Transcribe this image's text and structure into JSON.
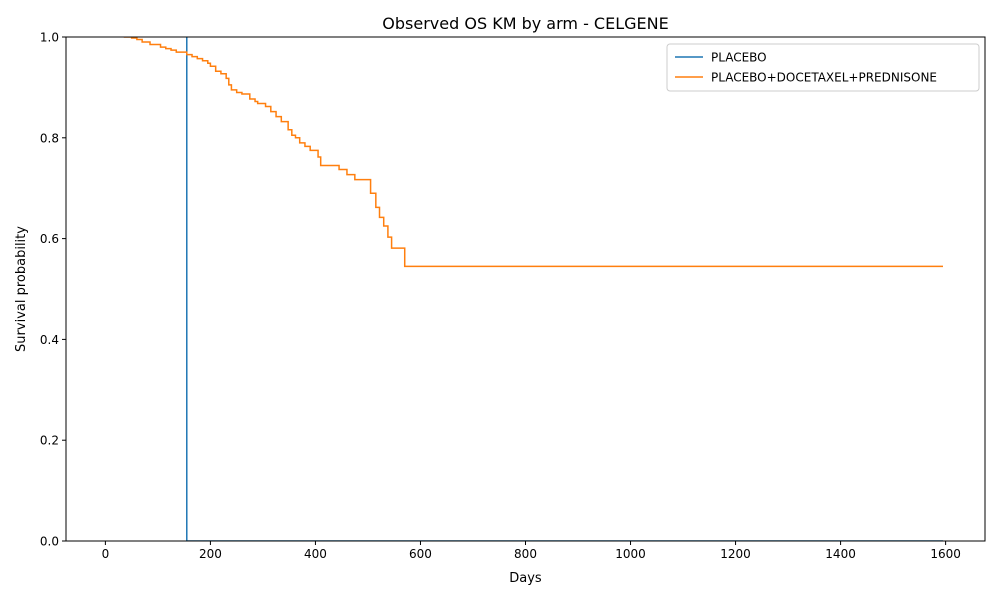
{
  "chart_data": {
    "type": "line",
    "title": "Observed OS KM by arm - CELGENE",
    "xlabel": "Days",
    "ylabel": "Survival probability",
    "xlim": [
      -75,
      1675
    ],
    "ylim": [
      0,
      1
    ],
    "x_ticks": [
      0,
      200,
      400,
      600,
      800,
      1000,
      1200,
      1400,
      1600
    ],
    "y_ticks": [
      0.0,
      0.2,
      0.4,
      0.6,
      0.8,
      1.0
    ],
    "x_tick_labels": [
      "0",
      "200",
      "400",
      "600",
      "800",
      "1000",
      "1200",
      "1400",
      "1600"
    ],
    "y_tick_labels": [
      "0.0",
      "0.2",
      "0.4",
      "0.6",
      "0.8",
      "1.0"
    ],
    "grid": false,
    "legend_position": "top-right",
    "series": [
      {
        "name": "PLACEBO",
        "color": "#1f77b4",
        "step": true,
        "points": [
          [
            155,
            1.0
          ],
          [
            155,
            0.0
          ],
          [
            1595,
            0.0
          ]
        ]
      },
      {
        "name": "PLACEBO+DOCETAXEL+PREDNISONE",
        "color": "#ff7f0e",
        "step": true,
        "points": [
          [
            35,
            1.0
          ],
          [
            50,
            0.998
          ],
          [
            60,
            0.995
          ],
          [
            70,
            0.99
          ],
          [
            85,
            0.985
          ],
          [
            105,
            0.98
          ],
          [
            115,
            0.977
          ],
          [
            125,
            0.974
          ],
          [
            135,
            0.97
          ],
          [
            155,
            0.965
          ],
          [
            165,
            0.961
          ],
          [
            175,
            0.957
          ],
          [
            185,
            0.953
          ],
          [
            195,
            0.948
          ],
          [
            200,
            0.942
          ],
          [
            210,
            0.932
          ],
          [
            220,
            0.927
          ],
          [
            230,
            0.918
          ],
          [
            235,
            0.905
          ],
          [
            240,
            0.895
          ],
          [
            250,
            0.89
          ],
          [
            260,
            0.887
          ],
          [
            275,
            0.877
          ],
          [
            285,
            0.872
          ],
          [
            290,
            0.868
          ],
          [
            305,
            0.862
          ],
          [
            315,
            0.852
          ],
          [
            325,
            0.842
          ],
          [
            335,
            0.832
          ],
          [
            348,
            0.816
          ],
          [
            355,
            0.805
          ],
          [
            362,
            0.8
          ],
          [
            370,
            0.79
          ],
          [
            380,
            0.783
          ],
          [
            390,
            0.775
          ],
          [
            405,
            0.762
          ],
          [
            410,
            0.745
          ],
          [
            445,
            0.737
          ],
          [
            460,
            0.727
          ],
          [
            475,
            0.717
          ],
          [
            505,
            0.69
          ],
          [
            515,
            0.662
          ],
          [
            522,
            0.642
          ],
          [
            530,
            0.625
          ],
          [
            538,
            0.603
          ],
          [
            545,
            0.581
          ],
          [
            570,
            0.545
          ],
          [
            1595,
            0.545
          ]
        ]
      }
    ]
  }
}
